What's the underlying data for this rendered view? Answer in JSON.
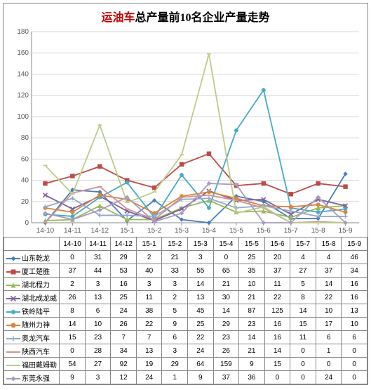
{
  "title_parts": {
    "red": "运油车",
    "black": "总产量前10名企业产量走势"
  },
  "chart": {
    "type": "line",
    "categories": [
      "14-10",
      "14-11",
      "14-12",
      "15-1",
      "15-2",
      "15-3",
      "15-4",
      "15-5",
      "15-6",
      "15-7",
      "15-8",
      "15-9"
    ],
    "ylim": [
      0,
      180
    ],
    "ytick_step": 20,
    "background_color": "#ffffff",
    "grid_color": "#d9d9d9",
    "axis_label_color": "#595959",
    "axis_label_fontsize": 10,
    "line_width": 1.8,
    "marker_size": 4
  },
  "series": [
    {
      "name": "山东乾龙",
      "color": "#4a7ebb",
      "marker": "diamond",
      "values": [
        0,
        31,
        29,
        2,
        21,
        3,
        0,
        25,
        20,
        4,
        4,
        46
      ]
    },
    {
      "name": "厦工楚胜",
      "color": "#be4b48",
      "marker": "square",
      "values": [
        37,
        44,
        53,
        40,
        33,
        55,
        65,
        35,
        37,
        27,
        37,
        34
      ]
    },
    {
      "name": "湖北程力",
      "color": "#98b954",
      "marker": "triangle",
      "values": [
        2,
        3,
        16,
        3,
        3,
        14,
        21,
        10,
        11,
        5,
        14,
        16
      ]
    },
    {
      "name": "湖北成龙威",
      "color": "#7d60a0",
      "marker": "x",
      "values": [
        26,
        13,
        25,
        11,
        2,
        13,
        30,
        21,
        22,
        8,
        22,
        16
      ]
    },
    {
      "name": "铁岭陆平",
      "color": "#46aac5",
      "marker": "star",
      "values": [
        8,
        6,
        24,
        38,
        5,
        45,
        14,
        87,
        125,
        14,
        10,
        13
      ]
    },
    {
      "name": "随州力神",
      "color": "#db843d",
      "marker": "circle",
      "values": [
        14,
        10,
        26,
        22,
        9,
        25,
        29,
        23,
        16,
        15,
        17,
        10
      ]
    },
    {
      "name": "奥龙汽车",
      "color": "#93a9cf",
      "marker": "plus",
      "values": [
        15,
        23,
        7,
        7,
        6,
        22,
        23,
        14,
        16,
        11,
        6,
        6
      ]
    },
    {
      "name": "陕西汽车",
      "color": "#d09392",
      "marker": "dash",
      "values": [
        0,
        28,
        34,
        13,
        3,
        24,
        26,
        21,
        14,
        0,
        1,
        0
      ]
    },
    {
      "name": "福田戴姆勒",
      "color": "#b9cd87",
      "marker": "dash",
      "values": [
        54,
        27,
        92,
        19,
        29,
        64,
        159,
        9,
        15,
        0,
        0,
        0
      ]
    },
    {
      "name": "东莞永强",
      "color": "#a99bbd",
      "marker": "diamond",
      "values": [
        9,
        3,
        12,
        24,
        1,
        9,
        37,
        36,
        0,
        0,
        24,
        0
      ]
    }
  ]
}
